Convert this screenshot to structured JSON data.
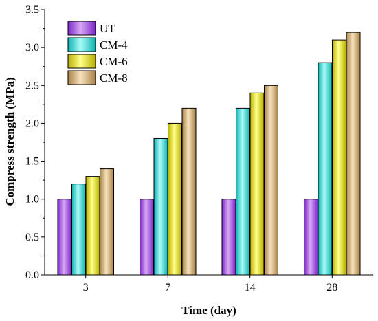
{
  "chart_data": {
    "type": "bar",
    "title": "",
    "xlabel": "Time (day)",
    "ylabel": "Compress strength (MPa)",
    "categories": [
      "3",
      "7",
      "14",
      "28"
    ],
    "ylim": [
      0,
      3.5
    ],
    "yticks": [
      "0.0",
      "0.5",
      "1.0",
      "1.5",
      "2.0",
      "2.5",
      "3.0",
      "3.5"
    ],
    "grid": false,
    "legend_position": "top-left",
    "series": [
      {
        "name": "UT",
        "values": [
          1.0,
          1.0,
          1.0,
          1.0
        ],
        "color_light": "#d9a8f5",
        "color_dark": "#7a28c8"
      },
      {
        "name": "CM-4",
        "values": [
          1.2,
          1.8,
          2.2,
          2.8
        ],
        "color_light": "#a8fbf6",
        "color_dark": "#10b2b3"
      },
      {
        "name": "CM-6",
        "values": [
          1.3,
          2.0,
          2.4,
          3.1
        ],
        "color_light": "#ffff8a",
        "color_dark": "#b9b000"
      },
      {
        "name": "CM-8",
        "values": [
          1.4,
          2.2,
          2.5,
          3.2
        ],
        "color_light": "#f7e2bc",
        "color_dark": "#a9824a"
      }
    ]
  }
}
